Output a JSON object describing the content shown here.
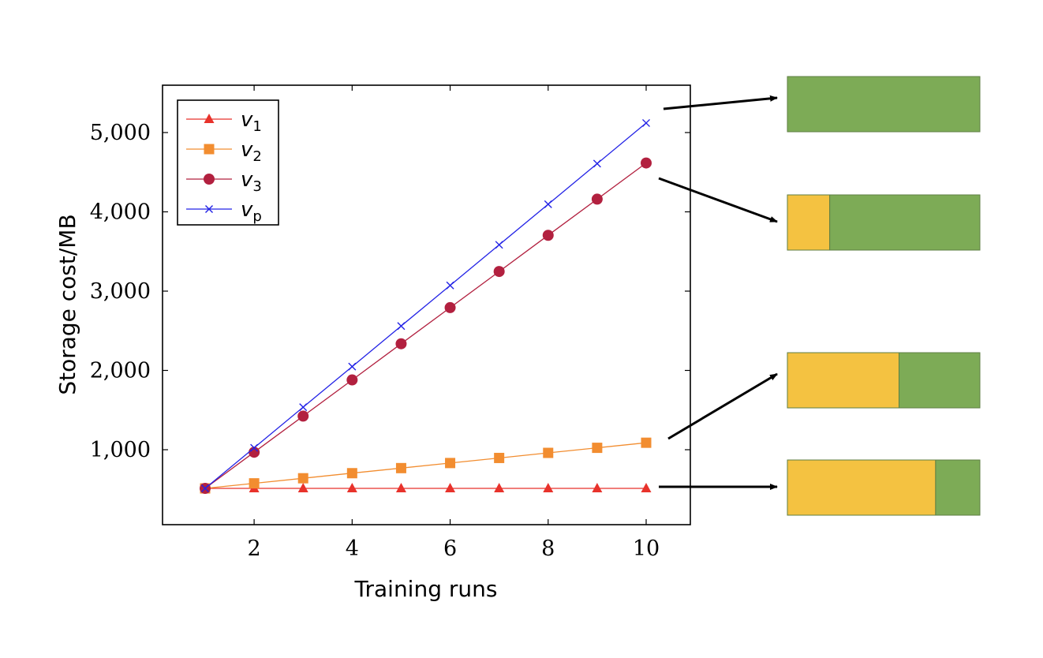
{
  "chart_data": {
    "type": "line",
    "xlabel": "Training runs",
    "ylabel": "Storage cost/MB",
    "xlim": [
      0.1,
      10.9
    ],
    "ylim": [
      500,
      5100
    ],
    "xticks": [
      2,
      4,
      6,
      8,
      10
    ],
    "xtick_labels": [
      "2",
      "4",
      "6",
      "8",
      "10"
    ],
    "yticks": [
      1000,
      2000,
      3000,
      4000,
      5000
    ],
    "ytick_labels": [
      "1,000",
      "2,000",
      "3,000",
      "4,000",
      "5,000"
    ],
    "grid": false,
    "legend_position": "top-left",
    "x": [
      1,
      2,
      3,
      4,
      5,
      6,
      7,
      8,
      9,
      10
    ],
    "series": [
      {
        "name": "v1",
        "symbol": "v",
        "subscript": "1",
        "color": "#e8322b",
        "marker": "triangle",
        "values": [
          512,
          512,
          512,
          512,
          512,
          512,
          512,
          512,
          512,
          512
        ]
      },
      {
        "name": "v2",
        "symbol": "v",
        "subscript": "2",
        "color": "#f28d30",
        "marker": "square",
        "values": [
          512,
          576,
          640,
          704,
          768,
          832,
          896,
          960,
          1024,
          1088
        ]
      },
      {
        "name": "v3",
        "symbol": "v",
        "subscript": "3",
        "color": "#b2203f",
        "marker": "circle",
        "values": [
          512,
          968,
          1424,
          1880,
          2336,
          2792,
          3248,
          3704,
          4160,
          4616
        ]
      },
      {
        "name": "vp",
        "symbol": "v",
        "subscript": "p",
        "color": "#2323e6",
        "marker": "x",
        "values": [
          512,
          1024,
          1536,
          2048,
          2560,
          3072,
          3584,
          4096,
          4608,
          5120
        ]
      }
    ],
    "composition_bars": [
      {
        "series": "vp",
        "yellow_fraction": 0.0,
        "green_fraction": 1.0
      },
      {
        "series": "v3",
        "yellow_fraction": 0.22,
        "green_fraction": 0.78
      },
      {
        "series": "v2",
        "yellow_fraction": 0.58,
        "green_fraction": 0.42
      },
      {
        "series": "v1",
        "yellow_fraction": 0.77,
        "green_fraction": 0.23
      }
    ],
    "colors": {
      "yellow": "#f4c241",
      "green": "#7dab56",
      "bar_border": "#5f7f44",
      "arrow": "#000000"
    }
  }
}
